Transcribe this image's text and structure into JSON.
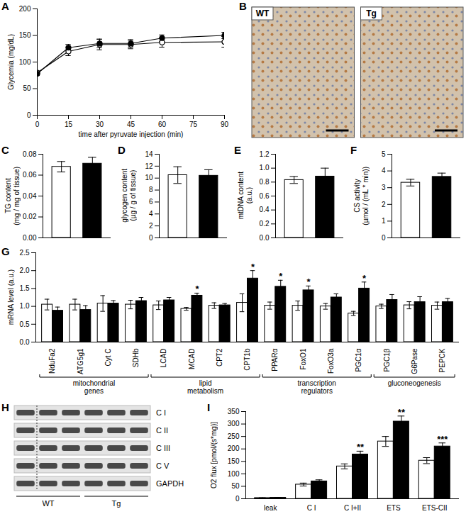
{
  "chart_data": [
    {
      "type": "line",
      "title": "A",
      "x": [
        0,
        15,
        30,
        45,
        60,
        90
      ],
      "xlim": [
        0,
        90
      ],
      "xticks": [
        0,
        15,
        30,
        45,
        60,
        75,
        90
      ],
      "ylim": [
        0,
        200
      ],
      "yticks": [
        0,
        50,
        100,
        150,
        200
      ],
      "xlabel": "time after pyruvate injection (min)",
      "ylabel": "Glycemia (mg/dL)",
      "series": [
        {
          "color": "#ffffff",
          "marker": "circle",
          "values": [
            80,
            120,
            133,
            133,
            137,
            138
          ],
          "errors": [
            3,
            8,
            10,
            8,
            9,
            10
          ]
        },
        {
          "color": "#000000",
          "marker": "circle",
          "values": [
            78,
            127,
            135,
            135,
            145,
            150
          ],
          "errors": [
            3,
            6,
            8,
            7,
            6,
            6
          ]
        }
      ]
    },
    {
      "type": "image",
      "title": "B",
      "labels": [
        "WT",
        "Tg"
      ]
    },
    {
      "type": "bar",
      "title": "C",
      "categories": [
        null,
        null
      ],
      "values": [
        0.068,
        0.071
      ],
      "errors": [
        0.005,
        0.006
      ],
      "colors": [
        "#ffffff",
        "#000000"
      ],
      "ylim": [
        0,
        0.08
      ],
      "yticks": [
        {
          "value": 0,
          "label": "0.00"
        },
        0.02,
        0.04,
        0.06,
        0.08
      ],
      "ylabel": "TG content\n(mg / mg of tissue)",
      "tick_labels": "y"
    },
    {
      "type": "bar",
      "title": "D",
      "categories": [
        null,
        null
      ],
      "values": [
        10.5,
        10.4
      ],
      "errors": [
        1.4,
        1.0
      ],
      "colors": [
        "#ffffff",
        "#000000"
      ],
      "ylim": [
        0,
        14
      ],
      "yticks": [
        0,
        2,
        4,
        6,
        8,
        10,
        12,
        14
      ],
      "ylabel": "glycogen content\n(µg / g of tissue)",
      "tick_labels": "y"
    },
    {
      "type": "bar",
      "title": "E",
      "categories": [
        null,
        null
      ],
      "values": [
        0.83,
        0.88
      ],
      "errors": [
        0.05,
        0.12
      ],
      "colors": [
        "#ffffff",
        "#000000"
      ],
      "ylim": [
        0,
        1.2
      ],
      "yticks": [
        {
          "value": 0,
          "label": "0.0"
        },
        0.2,
        0.4,
        0.6,
        0.8,
        {
          "value": 1,
          "label": "1.0"
        },
        1.2
      ],
      "ylabel": "mtDNA content\n(a.u.)",
      "tick_labels": "y"
    },
    {
      "type": "bar",
      "title": "F",
      "categories": [
        null,
        null
      ],
      "values": [
        3.3,
        3.65
      ],
      "errors": [
        0.2,
        0.22
      ],
      "colors": [
        "#ffffff",
        "#000000"
      ],
      "ylim": [
        0,
        5
      ],
      "yticks": [
        0,
        1,
        2,
        3,
        4,
        5
      ],
      "ylabel": "CS activity\n(µmol / (mL * min))",
      "tick_labels": "y"
    },
    {
      "type": "bar",
      "title": "G",
      "categories": [
        "NduFa2",
        "ATG5g1",
        "Cyt C",
        "SDHb",
        "LCAD",
        "MCAD",
        "CPT2",
        "CPT1b",
        "PPARα",
        "FoxO1",
        "FoxO3a",
        "PGC1α",
        "PGC1β",
        "G6Pase",
        "PEPCK"
      ],
      "series": [
        {
          "color": "#ffffff",
          "values": [
            1.05,
            1.05,
            1.08,
            1.05,
            1.03,
            0.93,
            1.02,
            1.1,
            1.02,
            1.02,
            1.0,
            0.8,
            1.0,
            1.03,
            1.02
          ],
          "errors": [
            0.15,
            0.15,
            0.22,
            0.12,
            0.12,
            0.04,
            0.08,
            0.25,
            0.1,
            0.13,
            0.08,
            0.06,
            0.06,
            0.1,
            0.1
          ]
        },
        {
          "color": "#000000",
          "values": [
            0.88,
            0.9,
            1.08,
            1.15,
            1.17,
            1.3,
            1.03,
            1.78,
            1.55,
            1.45,
            1.25,
            1.5,
            1.18,
            1.12,
            1.12
          ],
          "errors": [
            0.1,
            0.12,
            0.08,
            0.1,
            0.08,
            0.07,
            0.05,
            0.22,
            0.18,
            0.12,
            0.1,
            0.18,
            0.15,
            0.15,
            0.1
          ],
          "annotations": [
            null,
            null,
            null,
            null,
            null,
            "*",
            null,
            "*",
            "*",
            "*",
            null,
            "*",
            null,
            null,
            null
          ]
        }
      ],
      "ylim": [
        0,
        2.5
      ],
      "yticks": [
        {
          "value": 0,
          "label": "0.0"
        },
        0.5,
        {
          "value": 1,
          "label": "1.0"
        },
        1.5,
        {
          "value": 2,
          "label": "2.0"
        },
        2.5
      ],
      "ylabel": "mRNA level (a.u.)",
      "groups": [
        {
          "label": "mitochondrial\ngenes",
          "categories": [
            "NduFa2",
            "ATG5g1",
            "Cyt C",
            "SDHb"
          ]
        },
        {
          "label": "lipid\nmetabolism",
          "categories": [
            "LCAD",
            "MCAD",
            "CPT2",
            "CPT1b"
          ]
        },
        {
          "label": "transcription\nregulators",
          "categories": [
            "PPARα",
            "FoxO1",
            "FoxO3a",
            "PGC1α"
          ]
        },
        {
          "label": "gluconeogenesis",
          "categories": [
            "PGC1β",
            "G6Pase",
            "PEPCK"
          ]
        }
      ]
    },
    {
      "type": "blot",
      "title": "H",
      "rows": [
        "C I",
        "C II",
        "C III",
        "C V",
        "GAPDH"
      ],
      "groups": [
        "WT",
        "Tg"
      ]
    },
    {
      "type": "bar",
      "title": "I",
      "categories": [
        "leak",
        "C I",
        "C I+II",
        "ETS",
        "ETS-CII"
      ],
      "series": [
        {
          "color": "#ffffff",
          "values": [
            3,
            57,
            130,
            230,
            153
          ],
          "errors": [
            1,
            6,
            10,
            20,
            12
          ]
        },
        {
          "color": "#000000",
          "values": [
            4,
            70,
            178,
            310,
            210
          ],
          "errors": [
            1,
            6,
            13,
            22,
            14
          ],
          "annotations": [
            null,
            null,
            "**",
            "**",
            "***"
          ]
        }
      ],
      "ylim": [
        0,
        350
      ],
      "yticks": [
        0,
        50,
        100,
        150,
        200,
        250,
        300,
        350
      ],
      "ylabel": "O2 flux [pmol/(s*mg)]"
    }
  ]
}
